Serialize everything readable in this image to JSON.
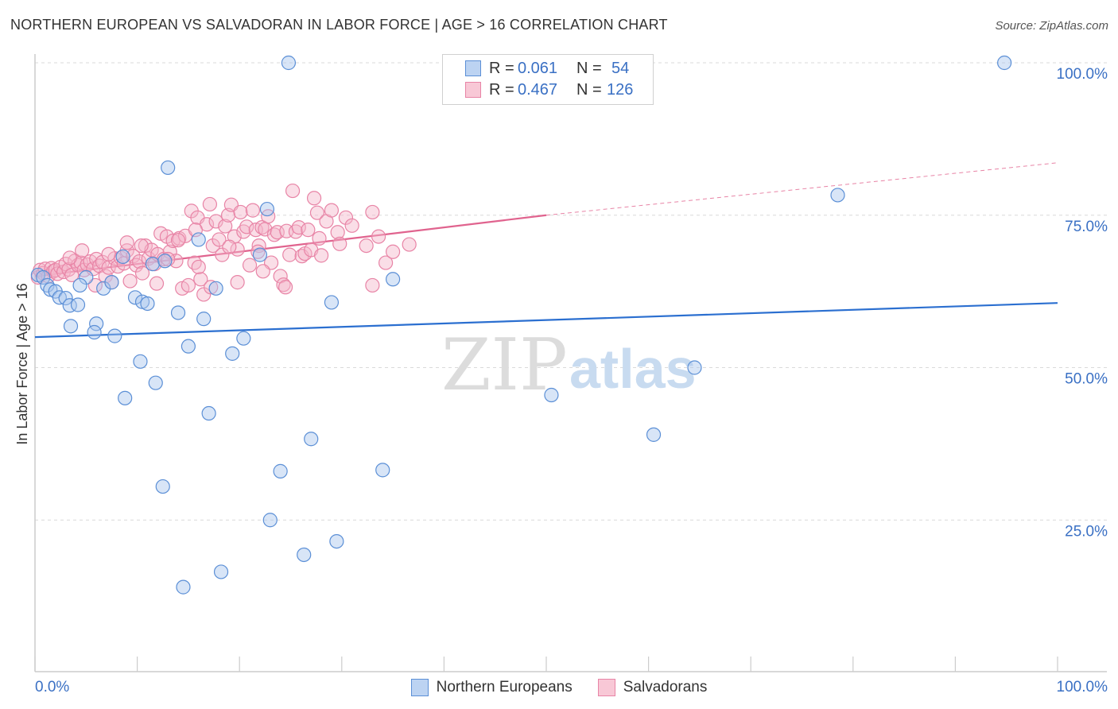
{
  "header": {
    "title": "NORTHERN EUROPEAN VS SALVADORAN IN LABOR FORCE | AGE > 16 CORRELATION CHART",
    "source": "Source: ZipAtlas.com"
  },
  "watermark": {
    "zip": "ZIP",
    "atlas": "atlas"
  },
  "legend_top": [
    {
      "r_label": "R = ",
      "r_value": "0.061",
      "n_label": "N = ",
      "n_value": "54"
    },
    {
      "r_label": "R = ",
      "r_value": "0.467",
      "n_label": "N = ",
      "n_value": "126"
    }
  ],
  "colors": {
    "blue_fill": "#a9c6ee",
    "blue_stroke": "#5b8fd6",
    "blue_line": "#2b6fd0",
    "pink_fill": "#f5b6c9",
    "pink_stroke": "#e884a6",
    "pink_line": "#e0638e",
    "tick_label": "#3a70c4",
    "grid": "#d9d9d9"
  },
  "chart_data": {
    "type": "scatter",
    "title": "NORTHERN EUROPEAN VS SALVADORAN IN LABOR FORCE | AGE > 16 CORRELATION CHART",
    "xlabel": "",
    "ylabel": "In Labor Force | Age > 16",
    "xlim": [
      0,
      100
    ],
    "ylim": [
      0,
      102
    ],
    "x_tick_labels": [
      "0.0%",
      "100.0%"
    ],
    "y_ticks": [
      25,
      50,
      75,
      100
    ],
    "y_tick_labels": [
      "25.0%",
      "50.0%",
      "75.0%",
      "100.0%"
    ],
    "grid": true,
    "legend_position": "bottom",
    "series": [
      {
        "name": "Northern Europeans",
        "color": "#5b8fd6",
        "points": [
          [
            0.3,
            65.2
          ],
          [
            0.8,
            64.8
          ],
          [
            1.2,
            63.5
          ],
          [
            1.5,
            62.8
          ],
          [
            2.0,
            62.5
          ],
          [
            2.4,
            61.5
          ],
          [
            3.0,
            61.4
          ],
          [
            3.4,
            60.2
          ],
          [
            4.2,
            60.3
          ],
          [
            5.0,
            64.8
          ],
          [
            4.4,
            63.5
          ],
          [
            3.5,
            56.8
          ],
          [
            6.0,
            57.2
          ],
          [
            5.8,
            55.8
          ],
          [
            6.7,
            63.0
          ],
          [
            7.5,
            64.0
          ],
          [
            7.8,
            55.2
          ],
          [
            9.8,
            61.5
          ],
          [
            10.5,
            60.8
          ],
          [
            11.0,
            60.5
          ],
          [
            8.6,
            68.2
          ],
          [
            11.5,
            67.0
          ],
          [
            12.7,
            67.5
          ],
          [
            13.0,
            82.8
          ],
          [
            14.0,
            59.0
          ],
          [
            15.0,
            53.5
          ],
          [
            16.0,
            71.0
          ],
          [
            16.5,
            58.0
          ],
          [
            17.0,
            42.5
          ],
          [
            17.7,
            63.0
          ],
          [
            19.3,
            52.3
          ],
          [
            20.4,
            54.8
          ],
          [
            22.0,
            68.5
          ],
          [
            22.7,
            76.0
          ],
          [
            10.3,
            51.0
          ],
          [
            11.8,
            47.5
          ],
          [
            8.8,
            45.0
          ],
          [
            12.5,
            30.5
          ],
          [
            14.5,
            14.0
          ],
          [
            18.2,
            16.5
          ],
          [
            23.0,
            25.0
          ],
          [
            24.0,
            33.0
          ],
          [
            26.3,
            19.3
          ],
          [
            27.0,
            38.3
          ],
          [
            29.5,
            21.5
          ],
          [
            29.0,
            60.7
          ],
          [
            34.0,
            33.2
          ],
          [
            35.0,
            64.5
          ],
          [
            50.5,
            45.5
          ],
          [
            60.5,
            39.0
          ],
          [
            64.5,
            50.0
          ],
          [
            78.5,
            78.3
          ],
          [
            24.8,
            100.0
          ],
          [
            94.8,
            100.0
          ]
        ],
        "trendline": {
          "x": [
            0,
            100
          ],
          "y": [
            55.0,
            60.6
          ]
        }
      },
      {
        "name": "Salvadorans",
        "color": "#e884a6",
        "points": [
          [
            0.3,
            64.8
          ],
          [
            0.5,
            66.0
          ],
          [
            0.8,
            65.5
          ],
          [
            1.0,
            66.2
          ],
          [
            1.3,
            65.0
          ],
          [
            1.6,
            66.3
          ],
          [
            1.8,
            65.8
          ],
          [
            2.0,
            66.0
          ],
          [
            2.2,
            65.4
          ],
          [
            2.5,
            66.5
          ],
          [
            2.8,
            65.7
          ],
          [
            3.0,
            67.0
          ],
          [
            3.3,
            66.1
          ],
          [
            3.6,
            65.2
          ],
          [
            3.9,
            67.5
          ],
          [
            4.2,
            66.8
          ],
          [
            4.5,
            67.2
          ],
          [
            4.8,
            66.0
          ],
          [
            5.1,
            66.9
          ],
          [
            5.4,
            67.4
          ],
          [
            5.7,
            66.2
          ],
          [
            6.0,
            67.8
          ],
          [
            6.3,
            66.7
          ],
          [
            6.6,
            67.3
          ],
          [
            6.9,
            65.0
          ],
          [
            7.2,
            66.4
          ],
          [
            7.5,
            64.0
          ],
          [
            7.8,
            67.9
          ],
          [
            8.1,
            66.6
          ],
          [
            8.4,
            68.0
          ],
          [
            8.7,
            67.1
          ],
          [
            9.0,
            69.2
          ],
          [
            9.3,
            64.2
          ],
          [
            9.6,
            68.3
          ],
          [
            9.9,
            66.8
          ],
          [
            10.2,
            67.4
          ],
          [
            10.5,
            65.5
          ],
          [
            10.8,
            70.0
          ],
          [
            11.1,
            67.9
          ],
          [
            11.4,
            69.3
          ],
          [
            11.7,
            67.0
          ],
          [
            12.0,
            68.6
          ],
          [
            12.3,
            72.0
          ],
          [
            12.6,
            67.8
          ],
          [
            12.9,
            71.5
          ],
          [
            13.2,
            69.0
          ],
          [
            13.5,
            70.8
          ],
          [
            13.8,
            67.5
          ],
          [
            14.1,
            71.2
          ],
          [
            14.4,
            63.0
          ],
          [
            14.7,
            71.6
          ],
          [
            15.0,
            63.5
          ],
          [
            15.3,
            75.7
          ],
          [
            15.6,
            67.2
          ],
          [
            15.9,
            74.6
          ],
          [
            16.2,
            64.5
          ],
          [
            16.5,
            62.0
          ],
          [
            16.8,
            73.5
          ],
          [
            17.1,
            76.8
          ],
          [
            17.4,
            70.0
          ],
          [
            17.7,
            74.0
          ],
          [
            18.0,
            71.0
          ],
          [
            18.3,
            68.5
          ],
          [
            18.6,
            73.2
          ],
          [
            18.9,
            75.0
          ],
          [
            19.2,
            76.7
          ],
          [
            19.5,
            71.5
          ],
          [
            19.8,
            69.4
          ],
          [
            20.1,
            75.5
          ],
          [
            20.4,
            72.3
          ],
          [
            20.7,
            73.1
          ],
          [
            21.0,
            66.8
          ],
          [
            21.3,
            75.8
          ],
          [
            21.6,
            72.6
          ],
          [
            21.9,
            70.0
          ],
          [
            22.2,
            73.0
          ],
          [
            22.5,
            72.7
          ],
          [
            22.8,
            74.8
          ],
          [
            23.1,
            67.2
          ],
          [
            23.4,
            71.8
          ],
          [
            23.7,
            72.2
          ],
          [
            24.0,
            65.0
          ],
          [
            24.3,
            63.6
          ],
          [
            24.6,
            72.4
          ],
          [
            24.9,
            68.5
          ],
          [
            25.2,
            79.0
          ],
          [
            25.5,
            72.3
          ],
          [
            25.8,
            73.0
          ],
          [
            26.1,
            68.3
          ],
          [
            26.4,
            68.7
          ],
          [
            26.7,
            72.6
          ],
          [
            27.0,
            69.3
          ],
          [
            27.3,
            77.8
          ],
          [
            27.6,
            75.4
          ],
          [
            28.0,
            68.4
          ],
          [
            28.5,
            74.0
          ],
          [
            29.0,
            75.8
          ],
          [
            29.6,
            72.2
          ],
          [
            30.4,
            74.6
          ],
          [
            31.0,
            73.3
          ],
          [
            32.4,
            70.0
          ],
          [
            33.0,
            75.5
          ],
          [
            33.6,
            71.5
          ],
          [
            34.3,
            67.2
          ],
          [
            35.0,
            69.0
          ],
          [
            36.6,
            70.2
          ],
          [
            19.8,
            64.0
          ],
          [
            17.2,
            63.2
          ],
          [
            13.0,
            67.8
          ],
          [
            9.0,
            70.5
          ],
          [
            10.4,
            70.0
          ],
          [
            14.0,
            70.9
          ],
          [
            22.3,
            65.8
          ],
          [
            33.0,
            63.5
          ],
          [
            29.8,
            70.3
          ],
          [
            7.2,
            68.6
          ],
          [
            3.4,
            68.0
          ],
          [
            11.9,
            63.8
          ],
          [
            15.7,
            72.6
          ],
          [
            24.5,
            63.2
          ],
          [
            4.6,
            69.2
          ],
          [
            21.8,
            69.0
          ],
          [
            27.8,
            71.2
          ],
          [
            16.0,
            66.5
          ],
          [
            5.9,
            63.5
          ],
          [
            19.0,
            69.8
          ]
        ],
        "trendline": {
          "x": [
            0,
            50
          ],
          "y": [
            65.0,
            75.0
          ]
        },
        "trendline_extension": {
          "x": [
            50,
            100
          ],
          "y": [
            75.0,
            83.6
          ]
        }
      }
    ]
  }
}
